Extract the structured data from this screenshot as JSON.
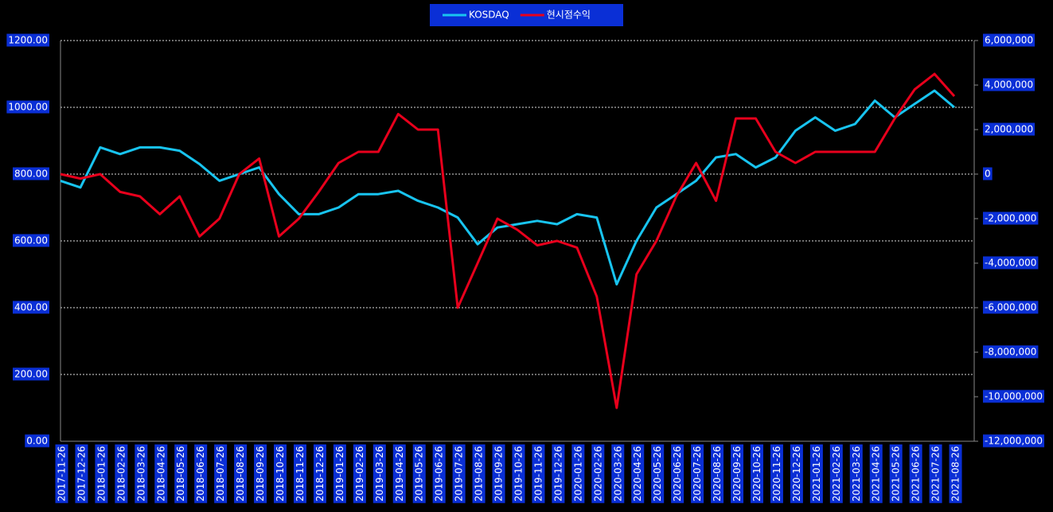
{
  "chart_data": {
    "type": "line",
    "categories": [
      "2017-11-26",
      "2017-12-26",
      "2018-01-26",
      "2018-02-26",
      "2018-03-26",
      "2018-04-26",
      "2018-05-26",
      "2018-06-26",
      "2018-07-26",
      "2018-08-26",
      "2018-09-26",
      "2018-10-26",
      "2018-11-26",
      "2018-12-26",
      "2019-01-26",
      "2019-02-26",
      "2019-03-26",
      "2019-04-26",
      "2019-05-26",
      "2019-06-26",
      "2019-07-26",
      "2019-08-26",
      "2019-09-26",
      "2019-10-26",
      "2019-11-26",
      "2019-12-26",
      "2020-01-26",
      "2020-02-26",
      "2020-03-26",
      "2020-04-26",
      "2020-05-26",
      "2020-06-26",
      "2020-07-26",
      "2020-08-26",
      "2020-09-26",
      "2020-10-26",
      "2020-11-26",
      "2020-12-26",
      "2021-01-26",
      "2021-02-26",
      "2021-03-26",
      "2021-04-26",
      "2021-05-26",
      "2021-06-26",
      "2021-07-26",
      "2021-08-26"
    ],
    "series": [
      {
        "name": "KOSDAQ",
        "color": "#18c4f0",
        "values": [
          780,
          760,
          880,
          860,
          880,
          880,
          870,
          830,
          780,
          800,
          820,
          740,
          680,
          680,
          700,
          740,
          740,
          750,
          720,
          700,
          670,
          590,
          640,
          650,
          660,
          650,
          680,
          670,
          470,
          600,
          700,
          740,
          780,
          850,
          860,
          820,
          850,
          930,
          970,
          930,
          950,
          1020,
          970,
          1010,
          1050,
          1000
        ]
      },
      {
        "name": "현시점수익",
        "color": "#e8001c",
        "axis": "y2",
        "values": [
          0,
          -200000,
          0,
          -800000,
          -1000000,
          -1800000,
          -1000000,
          -2800000,
          -2000000,
          0,
          700000,
          -2800000,
          -2000000,
          -800000,
          500000,
          1000000,
          1000000,
          2700000,
          2000000,
          2000000,
          -6000000,
          -4000000,
          -2000000,
          -2500000,
          -3200000,
          -3000000,
          -3300000,
          -5500000,
          -10500000,
          -4500000,
          -3000000,
          -1000000,
          500000,
          -1200000,
          2500000,
          2500000,
          1000000,
          500000,
          1000000,
          1000000,
          1000000,
          1000000,
          2500000,
          3800000,
          4500000,
          3500000
        ]
      }
    ],
    "ylim": [
      0,
      1200
    ],
    "yticks": [
      {
        "value": 0,
        "label": "0.00"
      },
      {
        "value": 200,
        "label": "200.00"
      },
      {
        "value": 400,
        "label": "400.00"
      },
      {
        "value": 600,
        "label": "600.00"
      },
      {
        "value": 800,
        "label": "800.00"
      },
      {
        "value": 1000,
        "label": "1000.00"
      },
      {
        "value": 1200,
        "label": "1200.00"
      }
    ],
    "y2lim": [
      -12000000,
      6000000
    ],
    "y2ticks": [
      {
        "value": -12000000,
        "label": "-12,000,000"
      },
      {
        "value": -10000000,
        "label": "-10,000,000"
      },
      {
        "value": -8000000,
        "label": "-8,000,000"
      },
      {
        "value": -6000000,
        "label": "-6,000,000"
      },
      {
        "value": -4000000,
        "label": "-4,000,000"
      },
      {
        "value": -2000000,
        "label": "-2,000,000"
      },
      0,
      {
        "value": 2000000,
        "label": "2,000,000"
      },
      {
        "value": 4000000,
        "label": "4,000,000"
      },
      {
        "value": 6000000,
        "label": "6,000,000"
      }
    ],
    "grid": true,
    "legend": "top"
  }
}
